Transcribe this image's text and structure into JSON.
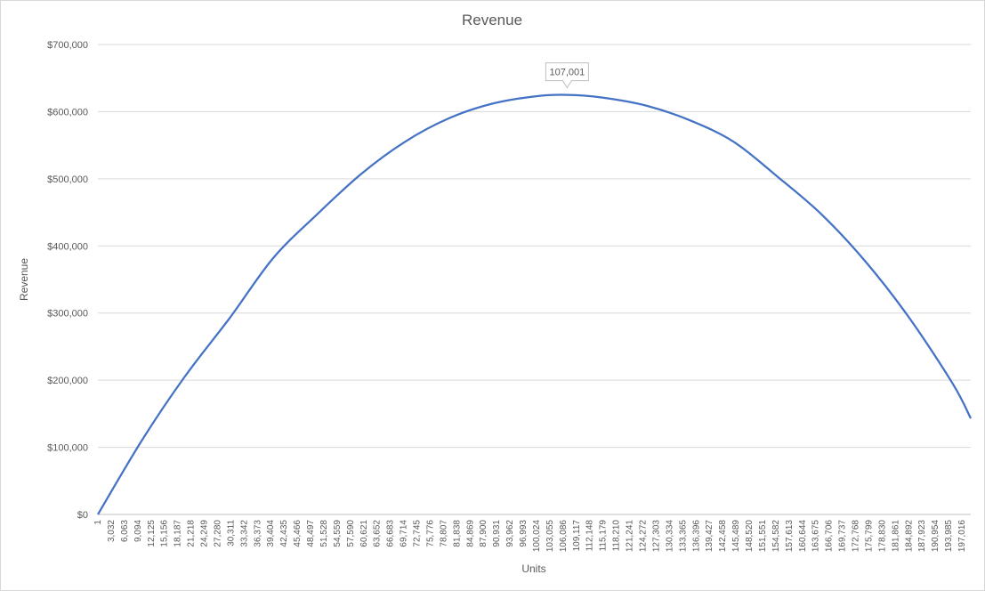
{
  "chart_data": {
    "type": "line",
    "title": "Revenue",
    "xlabel": "Units",
    "ylabel": "Revenue",
    "ylim": [
      0,
      700000
    ],
    "xlim": [
      1,
      199038
    ],
    "y_ticks": [
      "$0",
      "$100,000",
      "$200,000",
      "$300,000",
      "$400,000",
      "$500,000",
      "$600,000",
      "$700,000"
    ],
    "x_ticks": [
      "1",
      "3,032",
      "6,063",
      "9,094",
      "12,125",
      "15,156",
      "18,187",
      "21,218",
      "24,249",
      "27,280",
      "30,311",
      "33,342",
      "36,373",
      "39,404",
      "42,435",
      "45,466",
      "48,497",
      "51,528",
      "54,559",
      "57,590",
      "60,621",
      "63,652",
      "66,683",
      "69,714",
      "72,745",
      "75,776",
      "78,807",
      "81,838",
      "84,869",
      "87,900",
      "90,931",
      "93,962",
      "96,993",
      "100,024",
      "103,055",
      "106,086",
      "109,117",
      "112,148",
      "115,179",
      "118,210",
      "121,241",
      "124,272",
      "127,303",
      "130,334",
      "133,365",
      "136,396",
      "139,427",
      "142,458",
      "145,489",
      "148,520",
      "151,551",
      "154,582",
      "157,613",
      "160,644",
      "163,675",
      "166,706",
      "169,737",
      "172,768",
      "175,799",
      "178,830",
      "181,861",
      "184,892",
      "187,923",
      "190,954",
      "193,985",
      "197,016"
    ],
    "grid": true,
    "legend": "none",
    "series": [
      {
        "color": "#4472c4",
        "x": [
          1,
          10000,
          20000,
          30000,
          40000,
          50000,
          60000,
          70000,
          80000,
          90000,
          100000,
          107001,
          115000,
          125000,
          135000,
          145000,
          155000,
          165000,
          175000,
          185000,
          195000,
          199038
        ],
        "y": [
          0,
          110000,
          207000,
          292000,
          382000,
          447000,
          507000,
          555000,
          590000,
          612000,
          623000,
          625000,
          621000,
          609000,
          587000,
          555000,
          503000,
          447000,
          377000,
          293000,
          194000,
          143000
        ]
      }
    ],
    "annotations": [
      {
        "text": "107,001",
        "x": 107001,
        "y": 625000
      }
    ]
  }
}
